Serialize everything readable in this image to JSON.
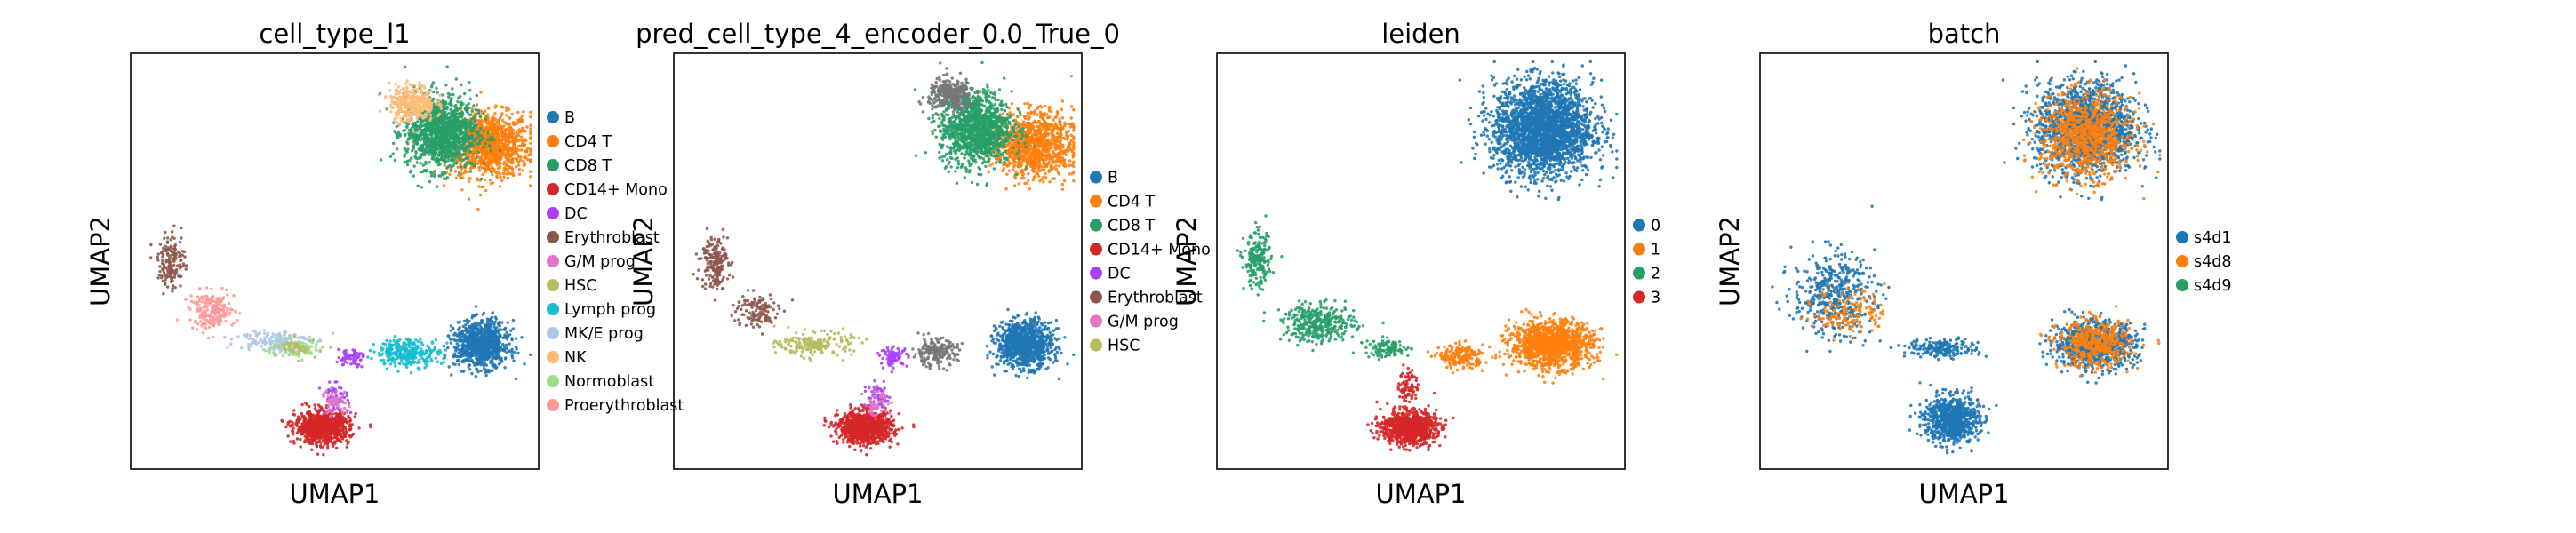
{
  "chart_data": [
    {
      "type": "scatter",
      "title": "cell_type_l1",
      "xlabel": "UMAP1",
      "ylabel": "UMAP2",
      "legend_position": "right",
      "legend": [
        {
          "label": "B",
          "color": "#1f77b4"
        },
        {
          "label": "CD4 T",
          "color": "#ff7f0e"
        },
        {
          "label": "CD8 T",
          "color": "#279e68"
        },
        {
          "label": "CD14+ Mono",
          "color": "#d62728"
        },
        {
          "label": "DC",
          "color": "#aa40fc"
        },
        {
          "label": "Erythroblast",
          "color": "#8c564b"
        },
        {
          "label": "G/M prog",
          "color": "#e377c2"
        },
        {
          "label": "HSC",
          "color": "#b5bd61"
        },
        {
          "label": "Lymph prog",
          "color": "#17becf"
        },
        {
          "label": "MK/E prog",
          "color": "#aec7e8"
        },
        {
          "label": "NK",
          "color": "#ffbb78"
        },
        {
          "label": "Normoblast",
          "color": "#98df8a"
        },
        {
          "label": "Proerythroblast",
          "color": "#ff9896"
        }
      ],
      "regions": [
        {
          "category": "CD4 T",
          "center": [
            0.88,
            0.78
          ],
          "spread": [
            0.09,
            0.07
          ],
          "count": 1100
        },
        {
          "category": "CD8 T",
          "center": [
            0.76,
            0.81
          ],
          "spread": [
            0.08,
            0.08
          ],
          "count": 1300
        },
        {
          "category": "NK",
          "center": [
            0.69,
            0.88
          ],
          "spread": [
            0.05,
            0.04
          ],
          "count": 350
        },
        {
          "category": "B",
          "center": [
            0.86,
            0.3
          ],
          "spread": [
            0.06,
            0.05
          ],
          "count": 900
        },
        {
          "category": "Lymph prog",
          "center": [
            0.68,
            0.28
          ],
          "spread": [
            0.07,
            0.03
          ],
          "count": 300
        },
        {
          "category": "DC",
          "center": [
            0.54,
            0.27
          ],
          "spread": [
            0.03,
            0.02
          ],
          "count": 60
        },
        {
          "category": "CD14+ Mono",
          "center": [
            0.47,
            0.1
          ],
          "spread": [
            0.06,
            0.035
          ],
          "count": 900
        },
        {
          "category": "DC",
          "center": [
            0.5,
            0.17
          ],
          "spread": [
            0.03,
            0.03
          ],
          "count": 60
        },
        {
          "category": "G/M prog",
          "center": [
            0.5,
            0.16
          ],
          "spread": [
            0.03,
            0.03
          ],
          "count": 50
        },
        {
          "category": "Erythroblast",
          "center": [
            0.1,
            0.5
          ],
          "spread": [
            0.03,
            0.06
          ],
          "count": 150
        },
        {
          "category": "Proerythroblast",
          "center": [
            0.2,
            0.38
          ],
          "spread": [
            0.05,
            0.04
          ],
          "count": 200
        },
        {
          "category": "MK/E prog",
          "center": [
            0.35,
            0.31
          ],
          "spread": [
            0.08,
            0.025
          ],
          "count": 150
        },
        {
          "category": "Normoblast",
          "center": [
            0.4,
            0.29
          ],
          "spread": [
            0.06,
            0.02
          ],
          "count": 80
        },
        {
          "category": "HSC",
          "center": [
            0.42,
            0.29
          ],
          "spread": [
            0.05,
            0.02
          ],
          "count": 50
        }
      ]
    },
    {
      "type": "scatter",
      "title": "pred_cell_type_4_encoder_0.0_True_0",
      "xlabel": "UMAP1",
      "ylabel": "UMAP2",
      "legend_position": "right",
      "legend": [
        {
          "label": "B",
          "color": "#1f77b4"
        },
        {
          "label": "CD4 T",
          "color": "#ff7f0e"
        },
        {
          "label": "CD8 T",
          "color": "#279e68"
        },
        {
          "label": "CD14+ Mono",
          "color": "#d62728"
        },
        {
          "label": "DC",
          "color": "#aa40fc"
        },
        {
          "label": "Erythroblast",
          "color": "#8c564b"
        },
        {
          "label": "G/M prog",
          "color": "#e377c2"
        },
        {
          "label": "HSC",
          "color": "#b5bd61"
        }
      ],
      "regions": [
        {
          "category": "CD4 T",
          "center": [
            0.88,
            0.78
          ],
          "spread": [
            0.09,
            0.07
          ],
          "count": 1100
        },
        {
          "category": "CD8 T",
          "center": [
            0.74,
            0.82
          ],
          "spread": [
            0.08,
            0.08
          ],
          "count": 1200
        },
        {
          "category": "Proerythroblast",
          "center": [
            0.68,
            0.9
          ],
          "spread": [
            0.05,
            0.035
          ],
          "count": 300
        },
        {
          "category": "B",
          "center": [
            0.86,
            0.3
          ],
          "spread": [
            0.06,
            0.05
          ],
          "count": 1000
        },
        {
          "category": "NK",
          "center": [
            0.64,
            0.28
          ],
          "spread": [
            0.05,
            0.03
          ],
          "count": 200
        },
        {
          "category": "DC",
          "center": [
            0.54,
            0.27
          ],
          "spread": [
            0.03,
            0.02
          ],
          "count": 80
        },
        {
          "category": "CD14+ Mono",
          "center": [
            0.47,
            0.1
          ],
          "spread": [
            0.06,
            0.035
          ],
          "count": 900
        },
        {
          "category": "DC",
          "center": [
            0.5,
            0.17
          ],
          "spread": [
            0.03,
            0.03
          ],
          "count": 60
        },
        {
          "category": "G/M prog",
          "center": [
            0.5,
            0.16
          ],
          "spread": [
            0.03,
            0.03
          ],
          "count": 40
        },
        {
          "category": "Erythroblast",
          "center": [
            0.1,
            0.5
          ],
          "spread": [
            0.03,
            0.06
          ],
          "count": 180
        },
        {
          "category": "Erythroblast",
          "center": [
            0.2,
            0.38
          ],
          "spread": [
            0.05,
            0.04
          ],
          "count": 120
        },
        {
          "category": "HSC",
          "center": [
            0.35,
            0.3
          ],
          "spread": [
            0.08,
            0.025
          ],
          "count": 200
        }
      ]
    },
    {
      "type": "scatter",
      "title": "leiden",
      "xlabel": "UMAP1",
      "ylabel": "UMAP2",
      "legend_position": "right",
      "legend": [
        {
          "label": "0",
          "color": "#1f77b4"
        },
        {
          "label": "1",
          "color": "#ff7f0e"
        },
        {
          "label": "2",
          "color": "#279e68"
        },
        {
          "label": "3",
          "color": "#d62728"
        }
      ],
      "regions": [
        {
          "category": "0",
          "center": [
            0.8,
            0.82
          ],
          "spread": [
            0.11,
            0.1
          ],
          "count": 2600
        },
        {
          "category": "1",
          "center": [
            0.82,
            0.3
          ],
          "spread": [
            0.09,
            0.05
          ],
          "count": 1300
        },
        {
          "category": "1",
          "center": [
            0.6,
            0.27
          ],
          "spread": [
            0.05,
            0.025
          ],
          "count": 200
        },
        {
          "category": "2",
          "center": [
            0.1,
            0.5
          ],
          "spread": [
            0.03,
            0.06
          ],
          "count": 200
        },
        {
          "category": "2",
          "center": [
            0.25,
            0.35
          ],
          "spread": [
            0.08,
            0.04
          ],
          "count": 350
        },
        {
          "category": "2",
          "center": [
            0.42,
            0.29
          ],
          "spread": [
            0.05,
            0.02
          ],
          "count": 100
        },
        {
          "category": "3",
          "center": [
            0.47,
            0.1
          ],
          "spread": [
            0.06,
            0.035
          ],
          "count": 900
        },
        {
          "category": "3",
          "center": [
            0.47,
            0.2
          ],
          "spread": [
            0.02,
            0.04
          ],
          "count": 80
        }
      ]
    },
    {
      "type": "scatter",
      "title": "batch",
      "xlabel": "UMAP1",
      "ylabel": "UMAP2",
      "legend_position": "right",
      "legend": [
        {
          "label": "s4d1",
          "color": "#1f77b4"
        },
        {
          "label": "s4d8",
          "color": "#ff7f0e"
        },
        {
          "label": "s4d9",
          "color": "#279e68"
        }
      ],
      "regions": [
        {
          "category": "s4d1",
          "center": [
            0.8,
            0.82
          ],
          "spread": [
            0.11,
            0.1
          ],
          "count": 1700
        },
        {
          "category": "s4d8",
          "center": [
            0.8,
            0.8
          ],
          "spread": [
            0.1,
            0.09
          ],
          "count": 900
        },
        {
          "category": "s4d1",
          "center": [
            0.82,
            0.3
          ],
          "spread": [
            0.09,
            0.05
          ],
          "count": 900
        },
        {
          "category": "s4d8",
          "center": [
            0.82,
            0.3
          ],
          "spread": [
            0.08,
            0.05
          ],
          "count": 450
        },
        {
          "category": "s4d1",
          "center": [
            0.47,
            0.12
          ],
          "spread": [
            0.06,
            0.05
          ],
          "count": 800
        },
        {
          "category": "s4d1",
          "center": [
            0.18,
            0.42
          ],
          "spread": [
            0.09,
            0.09
          ],
          "count": 450
        },
        {
          "category": "s4d8",
          "center": [
            0.22,
            0.38
          ],
          "spread": [
            0.08,
            0.05
          ],
          "count": 150
        },
        {
          "category": "s4d1",
          "center": [
            0.45,
            0.29
          ],
          "spread": [
            0.08,
            0.02
          ],
          "count": 200
        }
      ]
    }
  ]
}
